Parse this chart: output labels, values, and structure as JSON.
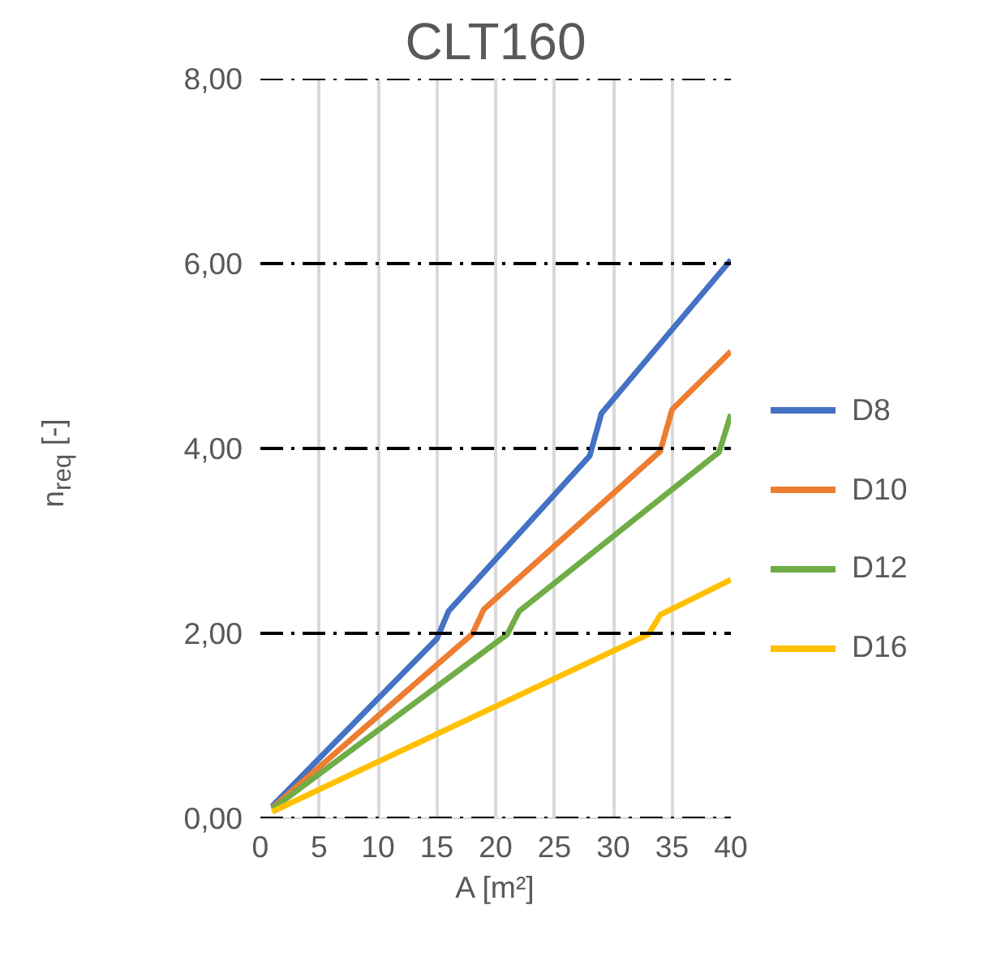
{
  "chart_data": {
    "type": "line",
    "title": "CLT160",
    "xlabel": "A [m²]",
    "ylabel": "n$_{req}$ [-]",
    "xlim": [
      0,
      40
    ],
    "xticks": [
      0,
      5,
      10,
      15,
      20,
      25,
      30,
      35,
      40
    ],
    "ylim": [
      0,
      8
    ],
    "yticks": [
      {
        "value": 0,
        "label": "0,00"
      },
      {
        "value": 2,
        "label": "2,00"
      },
      {
        "value": 4,
        "label": "4,00"
      },
      {
        "value": 6,
        "label": "6,00"
      },
      {
        "value": 8,
        "label": "8,00"
      }
    ],
    "grid": true,
    "legend": "right",
    "marker": "none",
    "line_style": "solid",
    "series": [
      {
        "name": "D8",
        "color": "#4472c4",
        "x": [
          1,
          15,
          16,
          28,
          29,
          40
        ],
        "values": [
          0.13,
          1.94,
          2.24,
          3.92,
          4.38,
          6.04
        ]
      },
      {
        "name": "D10",
        "color": "#ed7d31",
        "x": [
          1,
          18,
          19,
          34,
          35,
          40
        ],
        "values": [
          0.11,
          1.99,
          2.26,
          3.97,
          4.42,
          5.05
        ]
      },
      {
        "name": "D12",
        "color": "#70ad47",
        "x": [
          1,
          21,
          22,
          39,
          40
        ],
        "values": [
          0.1,
          1.99,
          2.24,
          3.96,
          4.37
        ]
      },
      {
        "name": "D16",
        "color": "#ffc000",
        "x": [
          1,
          33,
          34,
          40
        ],
        "values": [
          0.07,
          1.99,
          2.2,
          2.58
        ]
      }
    ]
  }
}
